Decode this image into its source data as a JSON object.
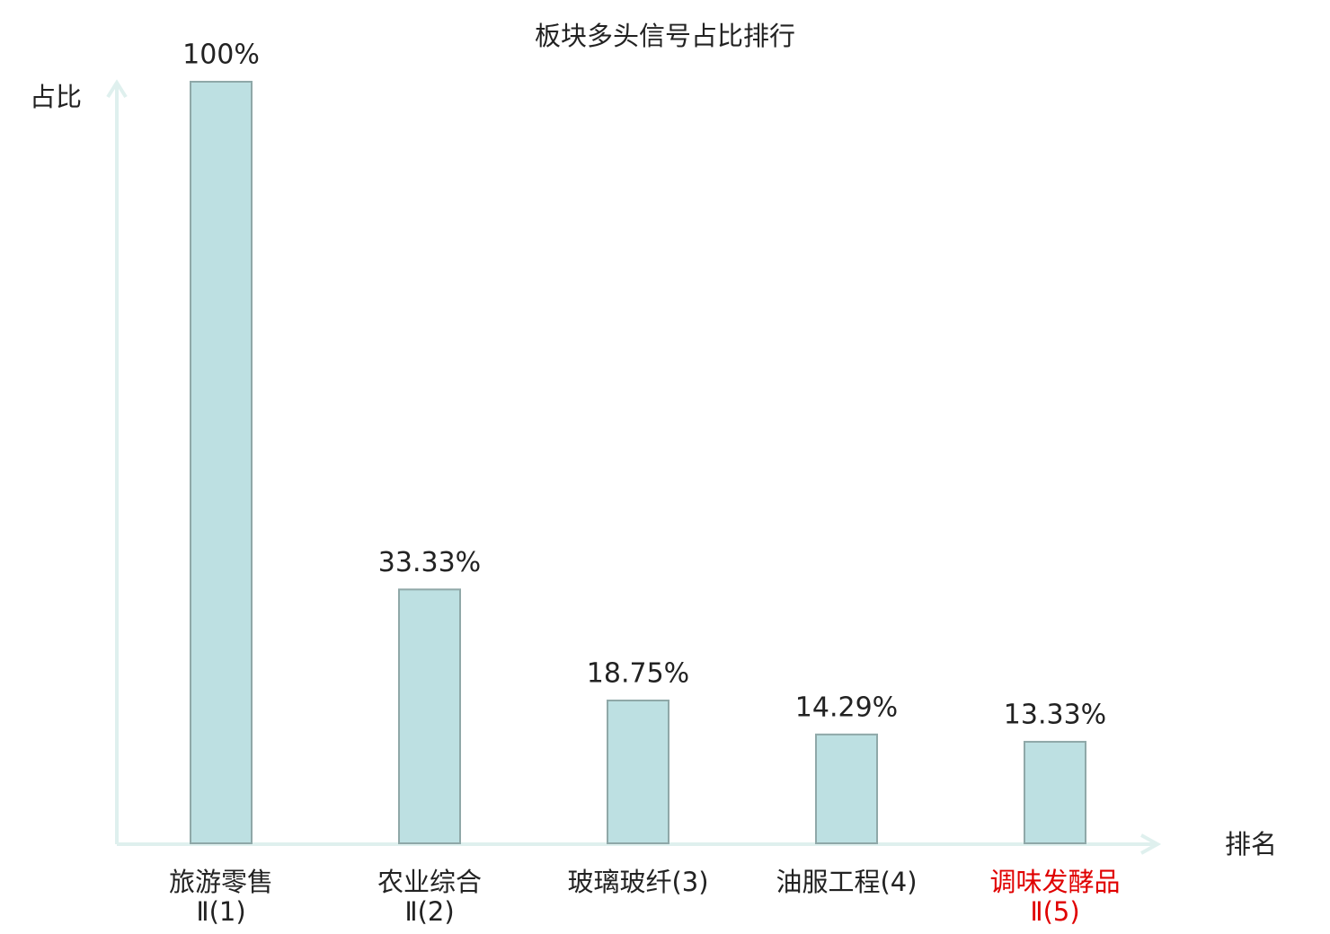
{
  "chart_data": {
    "type": "bar",
    "title": "板块多头信号占比排行",
    "y_label": "占比",
    "x_label": "排名",
    "categories": [
      "旅游零售Ⅱ(1)",
      "农业综合Ⅱ(2)",
      "玻璃玻纤(3)",
      "油服工程(4)",
      "调味发酵品Ⅱ(5)"
    ],
    "category_colors": [
      "#222222",
      "#222222",
      "#222222",
      "#222222",
      "#e00000"
    ],
    "values": [
      100,
      33.33,
      18.75,
      14.29,
      13.33
    ],
    "value_labels": [
      "100%",
      "33.33%",
      "18.75%",
      "14.29%",
      "13.33%"
    ],
    "color": "#bde0e2",
    "ylim": [
      0,
      100
    ]
  }
}
